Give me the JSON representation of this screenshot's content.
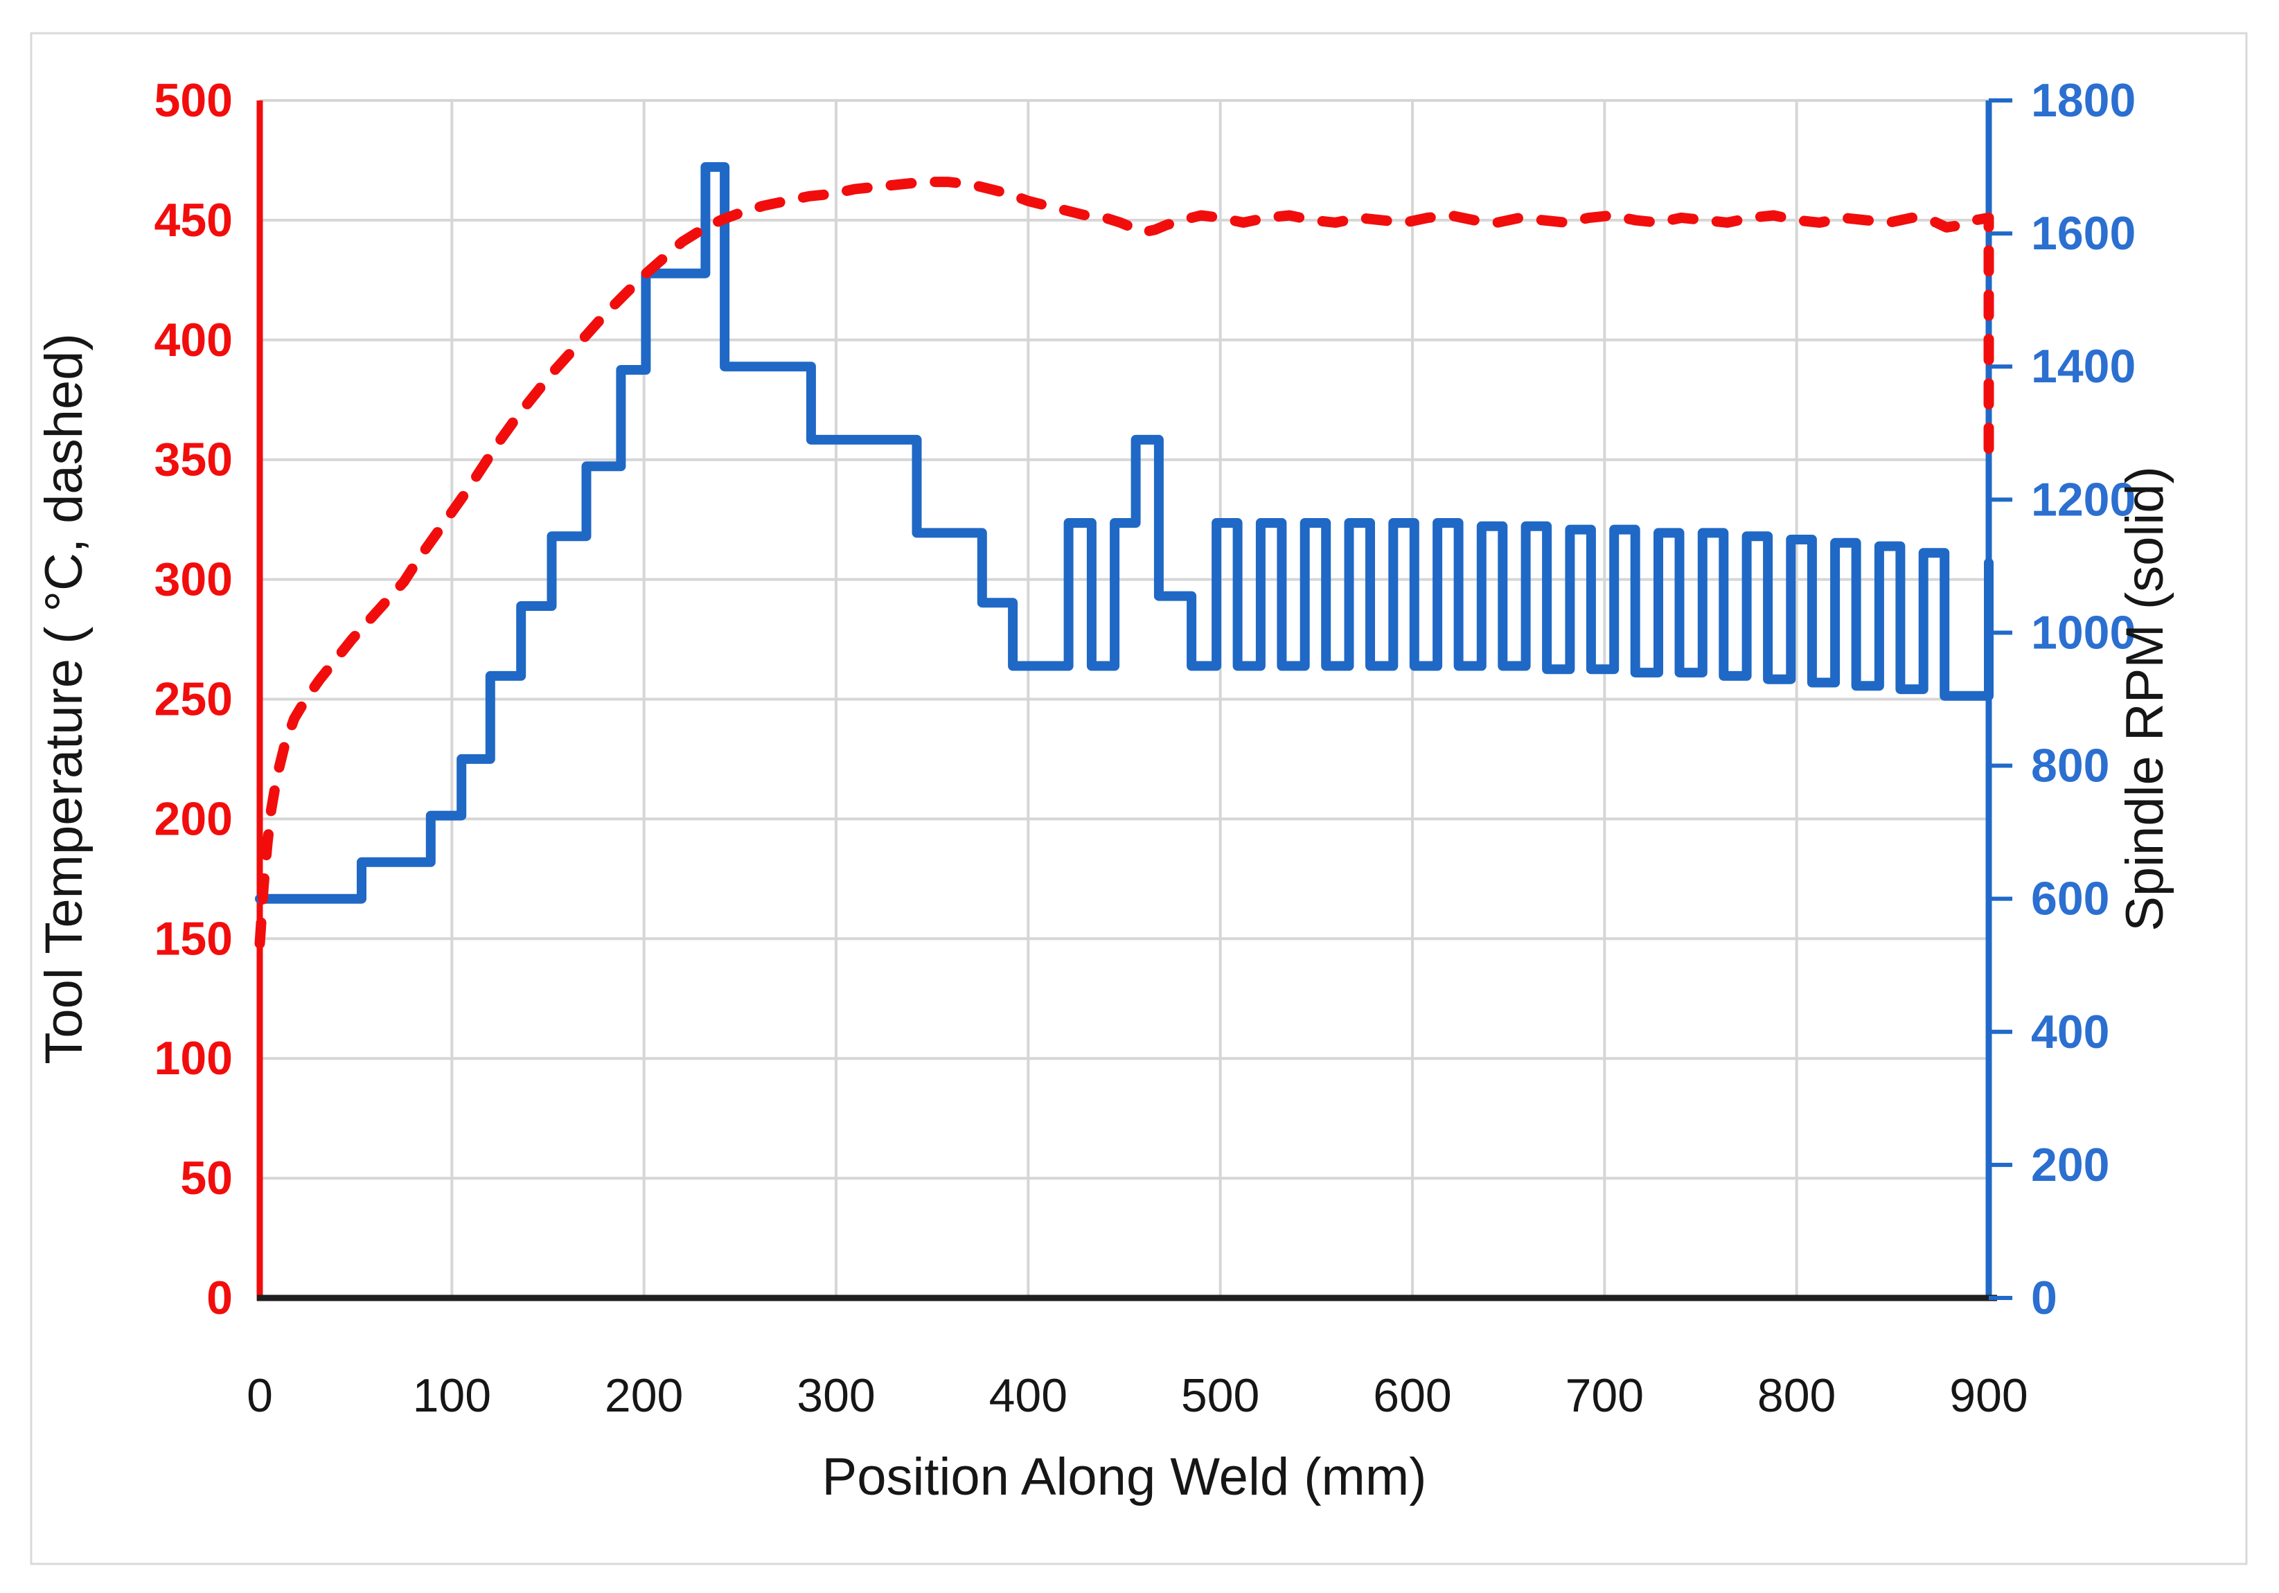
{
  "page": {
    "background": "#ffffff",
    "frame_border_color": "#d9d9d9"
  },
  "chart_data": {
    "type": "line",
    "title": "",
    "xlabel": "Position Along Weld (mm)",
    "ylabel_left": "Tool Temperature ( °C, dashed)",
    "ylabel_right": "Spindle RPM (solid)",
    "x_range": [
      0,
      900
    ],
    "x_ticks": [
      0,
      100,
      200,
      300,
      400,
      500,
      600,
      700,
      800,
      900
    ],
    "y_left": {
      "range": [
        0,
        500
      ],
      "ticks": [
        0,
        50,
        100,
        150,
        200,
        250,
        300,
        350,
        400,
        450,
        500
      ],
      "color": "#f20d0d"
    },
    "y_right": {
      "range": [
        0,
        1800
      ],
      "ticks": [
        0,
        200,
        400,
        600,
        800,
        1000,
        1200,
        1400,
        1600,
        1800
      ],
      "color": "#2b6fd0"
    },
    "grid": {
      "show": true,
      "color": "#d6d6d6",
      "x_interval": 100,
      "y_left_interval": 50
    },
    "axis_colors": {
      "left": "#f20d0d",
      "right": "#2169c8",
      "bottom": "#1f1f1f"
    },
    "legend_position": "none (series identified by axis titles: dashed = temperature, solid = RPM)",
    "series": [
      {
        "name": "Spindle RPM",
        "axis": "right",
        "style": "solid",
        "color": "#1f68c5",
        "points": [
          [
            0,
            600
          ],
          [
            53,
            600
          ],
          [
            53,
            655
          ],
          [
            89,
            655
          ],
          [
            89,
            725
          ],
          [
            105,
            725
          ],
          [
            105,
            810
          ],
          [
            120,
            810
          ],
          [
            120,
            935
          ],
          [
            136,
            935
          ],
          [
            136,
            1040
          ],
          [
            152,
            1040
          ],
          [
            152,
            1145
          ],
          [
            170,
            1145
          ],
          [
            170,
            1250
          ],
          [
            188,
            1250
          ],
          [
            188,
            1395
          ],
          [
            201,
            1395
          ],
          [
            201,
            1540
          ],
          [
            232,
            1540
          ],
          [
            232,
            1700
          ],
          [
            242,
            1700
          ],
          [
            242,
            1400
          ],
          [
            287,
            1400
          ],
          [
            287,
            1290
          ],
          [
            342,
            1290
          ],
          [
            342,
            1150
          ],
          [
            376,
            1150
          ],
          [
            376,
            1045
          ],
          [
            392,
            1045
          ],
          [
            392,
            950
          ],
          [
            421,
            950
          ],
          [
            421,
            1165
          ],
          [
            433,
            1165
          ],
          [
            433,
            950
          ],
          [
            445,
            950
          ],
          [
            445,
            1165
          ],
          [
            456,
            1165
          ],
          [
            456,
            1290
          ],
          [
            468,
            1290
          ],
          [
            468,
            1055
          ],
          [
            485,
            1055
          ],
          [
            485,
            950
          ],
          [
            498,
            950
          ],
          [
            498,
            1165
          ],
          [
            509,
            1165
          ],
          [
            509,
            950
          ],
          [
            521,
            950
          ],
          [
            521,
            1165
          ],
          [
            532,
            1165
          ],
          [
            532,
            950
          ],
          [
            544,
            950
          ],
          [
            544,
            1165
          ],
          [
            555,
            1165
          ],
          [
            555,
            950
          ],
          [
            567,
            950
          ],
          [
            567,
            1165
          ],
          [
            578,
            1165
          ],
          [
            578,
            950
          ],
          [
            590,
            950
          ],
          [
            590,
            1165
          ],
          [
            601,
            1165
          ],
          [
            601,
            950
          ],
          [
            613,
            950
          ],
          [
            613,
            1165
          ],
          [
            624,
            1165
          ],
          [
            624,
            950
          ],
          [
            636,
            950
          ],
          [
            636,
            1160
          ],
          [
            647,
            1160
          ],
          [
            647,
            950
          ],
          [
            659,
            950
          ],
          [
            659,
            1160
          ],
          [
            670,
            1160
          ],
          [
            670,
            945
          ],
          [
            682,
            945
          ],
          [
            682,
            1155
          ],
          [
            693,
            1155
          ],
          [
            693,
            945
          ],
          [
            705,
            945
          ],
          [
            705,
            1155
          ],
          [
            716,
            1155
          ],
          [
            716,
            940
          ],
          [
            728,
            940
          ],
          [
            728,
            1150
          ],
          [
            739,
            1150
          ],
          [
            739,
            940
          ],
          [
            751,
            940
          ],
          [
            751,
            1150
          ],
          [
            762,
            1150
          ],
          [
            762,
            935
          ],
          [
            774,
            935
          ],
          [
            774,
            1145
          ],
          [
            785,
            1145
          ],
          [
            785,
            930
          ],
          [
            797,
            930
          ],
          [
            797,
            1140
          ],
          [
            808,
            1140
          ],
          [
            808,
            925
          ],
          [
            820,
            925
          ],
          [
            820,
            1135
          ],
          [
            831,
            1135
          ],
          [
            831,
            920
          ],
          [
            843,
            920
          ],
          [
            843,
            1130
          ],
          [
            854,
            1130
          ],
          [
            854,
            915
          ],
          [
            866,
            915
          ],
          [
            866,
            1120
          ],
          [
            877,
            1120
          ],
          [
            877,
            905
          ],
          [
            897,
            905
          ],
          [
            900,
            905
          ],
          [
            900,
            1105
          ]
        ]
      },
      {
        "name": "Tool Temperature",
        "axis": "left",
        "style": "dashed",
        "color": "#f20d0d",
        "points": [
          [
            0,
            148
          ],
          [
            1,
            160
          ],
          [
            2,
            172
          ],
          [
            4,
            190
          ],
          [
            6,
            204
          ],
          [
            9,
            218
          ],
          [
            13,
            231
          ],
          [
            18,
            242
          ],
          [
            24,
            250
          ],
          [
            31,
            258
          ],
          [
            39,
            266
          ],
          [
            48,
            275
          ],
          [
            57,
            283
          ],
          [
            66,
            291
          ],
          [
            75,
            299
          ],
          [
            83,
            309
          ],
          [
            91,
            318
          ],
          [
            99,
            327
          ],
          [
            107,
            336
          ],
          [
            116,
            347
          ],
          [
            125,
            358
          ],
          [
            134,
            368
          ],
          [
            143,
            377
          ],
          [
            152,
            386
          ],
          [
            161,
            394
          ],
          [
            170,
            402
          ],
          [
            180,
            411
          ],
          [
            190,
            419
          ],
          [
            200,
            427
          ],
          [
            210,
            434
          ],
          [
            220,
            441
          ],
          [
            230,
            446
          ],
          [
            240,
            450
          ],
          [
            250,
            453
          ],
          [
            262,
            456
          ],
          [
            274,
            458
          ],
          [
            286,
            460
          ],
          [
            298,
            461
          ],
          [
            310,
            463
          ],
          [
            322,
            464
          ],
          [
            334,
            465
          ],
          [
            346,
            466
          ],
          [
            358,
            466
          ],
          [
            370,
            465
          ],
          [
            380,
            463
          ],
          [
            390,
            461
          ],
          [
            400,
            458
          ],
          [
            410,
            456
          ],
          [
            420,
            454
          ],
          [
            430,
            452
          ],
          [
            440,
            451
          ],
          [
            448,
            449
          ],
          [
            454,
            447
          ],
          [
            460,
            445
          ],
          [
            466,
            446
          ],
          [
            472,
            448
          ],
          [
            480,
            450
          ],
          [
            490,
            452
          ],
          [
            500,
            451
          ],
          [
            512,
            449
          ],
          [
            524,
            451
          ],
          [
            536,
            452
          ],
          [
            548,
            450
          ],
          [
            560,
            449
          ],
          [
            572,
            451
          ],
          [
            584,
            450
          ],
          [
            596,
            449
          ],
          [
            608,
            451
          ],
          [
            620,
            452
          ],
          [
            632,
            450
          ],
          [
            644,
            449
          ],
          [
            656,
            451
          ],
          [
            668,
            450
          ],
          [
            680,
            449
          ],
          [
            692,
            451
          ],
          [
            704,
            452
          ],
          [
            716,
            450
          ],
          [
            728,
            449
          ],
          [
            740,
            451
          ],
          [
            752,
            450
          ],
          [
            764,
            449
          ],
          [
            776,
            451
          ],
          [
            788,
            452
          ],
          [
            800,
            450
          ],
          [
            812,
            449
          ],
          [
            824,
            451
          ],
          [
            836,
            450
          ],
          [
            848,
            449
          ],
          [
            860,
            451
          ],
          [
            870,
            450
          ],
          [
            878,
            447
          ],
          [
            886,
            448
          ],
          [
            893,
            450
          ],
          [
            900,
            451
          ],
          [
            900,
            350
          ]
        ]
      }
    ]
  }
}
